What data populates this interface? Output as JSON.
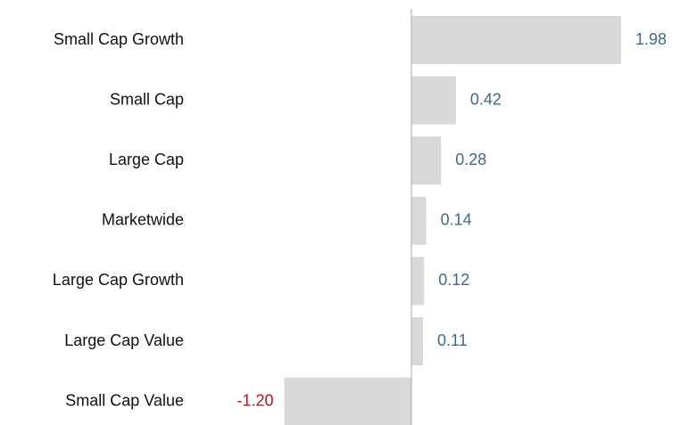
{
  "chart_data": {
    "type": "barh",
    "categories": [
      "Small Cap Growth",
      "Small Cap",
      "Large Cap",
      "Marketwide",
      "Large Cap Growth",
      "Large Cap Value",
      "Small Cap Value"
    ],
    "values": [
      1.98,
      0.42,
      0.28,
      0.14,
      0.12,
      0.11,
      -1.2
    ],
    "value_labels": [
      "1.98",
      "0.42",
      "0.28",
      "0.14",
      "0.12",
      "0.11",
      "-1.20"
    ],
    "color": "#d9d9d9",
    "positive_label_color": "#3e6a87",
    "negative_label_color": "#b01c1c"
  }
}
